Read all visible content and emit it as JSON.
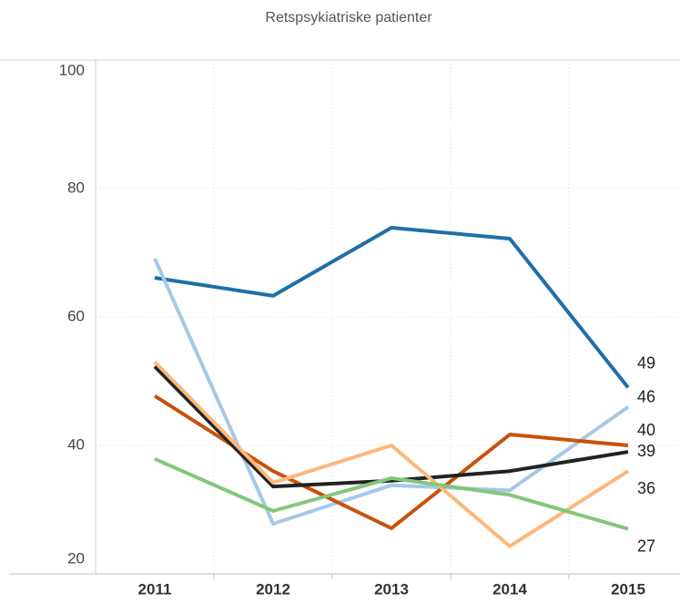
{
  "chart_data": {
    "type": "line",
    "title": "Retspsykiatriske patienter",
    "categories": [
      "2011",
      "2012",
      "2013",
      "2014",
      "2015"
    ],
    "series": [
      {
        "color": "#1f6fa8",
        "values": [
          66.1,
          63.3,
          73.9,
          72.2,
          49
        ]
      },
      {
        "color": "#a5c8e8",
        "values": [
          69.1,
          27.8,
          33.8,
          33,
          46
        ]
      },
      {
        "color": "#c8520a",
        "values": [
          47.7,
          36,
          27.1,
          41.7,
          40
        ]
      },
      {
        "color": "#222222",
        "values": [
          52.3,
          33.6,
          34.5,
          36,
          39
        ]
      },
      {
        "color": "#fdb77a",
        "values": [
          53,
          34.2,
          40,
          24.3,
          36
        ]
      },
      {
        "color": "#82c77a",
        "values": [
          37.9,
          29.8,
          34.9,
          32.3,
          27
        ]
      }
    ],
    "ylim": [
      20,
      100
    ],
    "yticks": [
      20,
      40,
      60,
      80,
      100
    ],
    "grid": true
  }
}
